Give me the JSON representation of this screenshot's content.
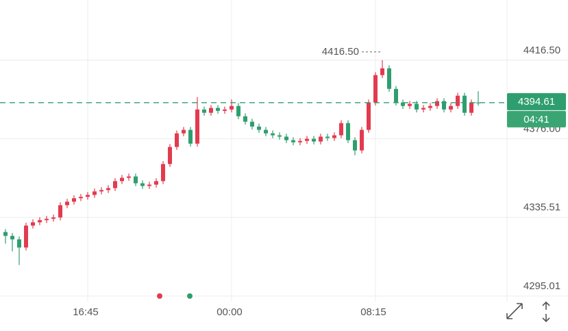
{
  "chart_data": {
    "type": "candlestick",
    "categories": [
      null,
      null,
      null,
      null,
      null,
      null,
      null,
      null,
      null,
      null,
      null,
      null,
      "16:45",
      null,
      null,
      null,
      null,
      null,
      null,
      null,
      null,
      null,
      null,
      null,
      null,
      null,
      null,
      null,
      null,
      null,
      null,
      null,
      null,
      "00:00",
      null,
      null,
      null,
      null,
      null,
      null,
      null,
      null,
      null,
      null,
      null,
      null,
      null,
      null,
      null,
      null,
      null,
      null,
      null,
      null,
      "08:15",
      null,
      null,
      null,
      null,
      null,
      null,
      null,
      null,
      null,
      null,
      null,
      null,
      null,
      null,
      null
    ],
    "open": [
      4328.0,
      4326.0,
      4324.2,
      4320.0,
      4331.3,
      4333.0,
      4334.1,
      4334.8,
      4335.5,
      4341.8,
      4343.6,
      4345.4,
      4346.1,
      4347.1,
      4348.9,
      4349.6,
      4350.6,
      4354.2,
      4355.9,
      4356.6,
      4353.1,
      4351.7,
      4352.4,
      4354.2,
      4363.0,
      4371.8,
      4378.8,
      4380.6,
      4373.5,
      4391.1,
      4389.4,
      4391.9,
      4390.4,
      4391.1,
      4392.9,
      4387.6,
      4384.8,
      4382.3,
      4380.6,
      4378.8,
      4377.8,
      4377.1,
      4375.3,
      4374.2,
      4374.9,
      4376.0,
      4374.6,
      4377.1,
      4376.4,
      4377.8,
      4384.1,
      4375.3,
      4370.0,
      4380.6,
      4394.7,
      4408.8,
      4412.3,
      4401.7,
      4394.7,
      4392.9,
      4394.0,
      4391.1,
      4391.9,
      4392.9,
      4395.4,
      4391.1,
      4392.9,
      4398.2,
      4389.4,
      4394.7
    ],
    "high": [
      4329.5,
      4327.5,
      4325.7,
      4332.8,
      4334.5,
      4335.6,
      4336.3,
      4337.0,
      4343.3,
      4345.1,
      4346.9,
      4347.6,
      4348.6,
      4350.4,
      4351.1,
      4352.1,
      4355.7,
      4357.4,
      4358.1,
      4358.1,
      4354.6,
      4353.9,
      4355.7,
      4364.5,
      4373.3,
      4380.3,
      4382.1,
      4382.1,
      4397.5,
      4392.6,
      4393.4,
      4393.4,
      4392.6,
      4396.3,
      4394.4,
      4389.1,
      4386.3,
      4383.8,
      4382.1,
      4380.3,
      4379.3,
      4378.6,
      4376.8,
      4376.4,
      4377.5,
      4377.5,
      4378.6,
      4378.6,
      4379.3,
      4385.6,
      4385.6,
      4376.8,
      4382.1,
      4396.2,
      4410.3,
      4416.5,
      4413.8,
      4403.2,
      4396.2,
      4395.5,
      4395.5,
      4393.4,
      4394.4,
      4396.9,
      4396.9,
      4394.4,
      4399.7,
      4399.7,
      4396.2,
      4400.5
    ],
    "low": [
      4322.0,
      4318.0,
      4311.0,
      4318.5,
      4329.8,
      4331.5,
      4332.6,
      4333.3,
      4334.0,
      4340.3,
      4342.1,
      4343.9,
      4344.6,
      4345.6,
      4347.4,
      4348.1,
      4349.1,
      4352.7,
      4354.4,
      4351.6,
      4350.2,
      4350.2,
      4350.9,
      4352.7,
      4361.5,
      4370.3,
      4377.3,
      4372.0,
      4372.0,
      4387.9,
      4387.9,
      4388.9,
      4388.9,
      4389.6,
      4386.1,
      4383.3,
      4380.8,
      4379.1,
      4377.3,
      4376.3,
      4375.6,
      4373.8,
      4372.7,
      4372.7,
      4373.4,
      4373.1,
      4373.1,
      4374.9,
      4374.9,
      4376.3,
      4373.8,
      4367.5,
      4368.5,
      4379.1,
      4393.2,
      4407.3,
      4400.2,
      4393.2,
      4391.4,
      4391.4,
      4389.6,
      4389.6,
      4390.4,
      4391.4,
      4389.6,
      4389.6,
      4391.4,
      4387.9,
      4387.9,
      4393.1
    ],
    "close": [
      4326.0,
      4324.2,
      4320.0,
      4331.3,
      4333.0,
      4334.1,
      4334.8,
      4335.5,
      4341.8,
      4343.6,
      4345.4,
      4346.1,
      4347.1,
      4348.9,
      4349.6,
      4350.6,
      4354.2,
      4355.9,
      4356.6,
      4353.1,
      4351.7,
      4352.4,
      4354.2,
      4363.0,
      4371.8,
      4378.8,
      4380.6,
      4373.5,
      4391.1,
      4389.4,
      4391.9,
      4390.4,
      4391.1,
      4392.9,
      4387.6,
      4384.8,
      4382.3,
      4380.6,
      4378.8,
      4377.8,
      4377.1,
      4375.3,
      4374.2,
      4374.9,
      4376.0,
      4374.6,
      4377.1,
      4376.4,
      4377.8,
      4384.1,
      4375.3,
      4370.0,
      4380.6,
      4394.7,
      4408.8,
      4412.3,
      4401.7,
      4394.7,
      4392.9,
      4394.0,
      4391.1,
      4391.9,
      4392.9,
      4395.4,
      4391.1,
      4392.9,
      4398.2,
      4389.4,
      4394.7,
      4394.61
    ],
    "up_color": "#e23b4f",
    "down_color": "#2f9e6e",
    "ylim": [
      4292.19,
      4447.49
    ],
    "yticks": [
      4295.01,
      4335.51,
      {
        "value": 4376,
        "label": "4376.00"
      },
      {
        "value": 4416.5,
        "label": "4416.50"
      }
    ],
    "grid": true,
    "max_marker": {
      "value": 4416.5,
      "label": "4416.50"
    },
    "last_price": 4394.61,
    "countdown": "04:41"
  }
}
